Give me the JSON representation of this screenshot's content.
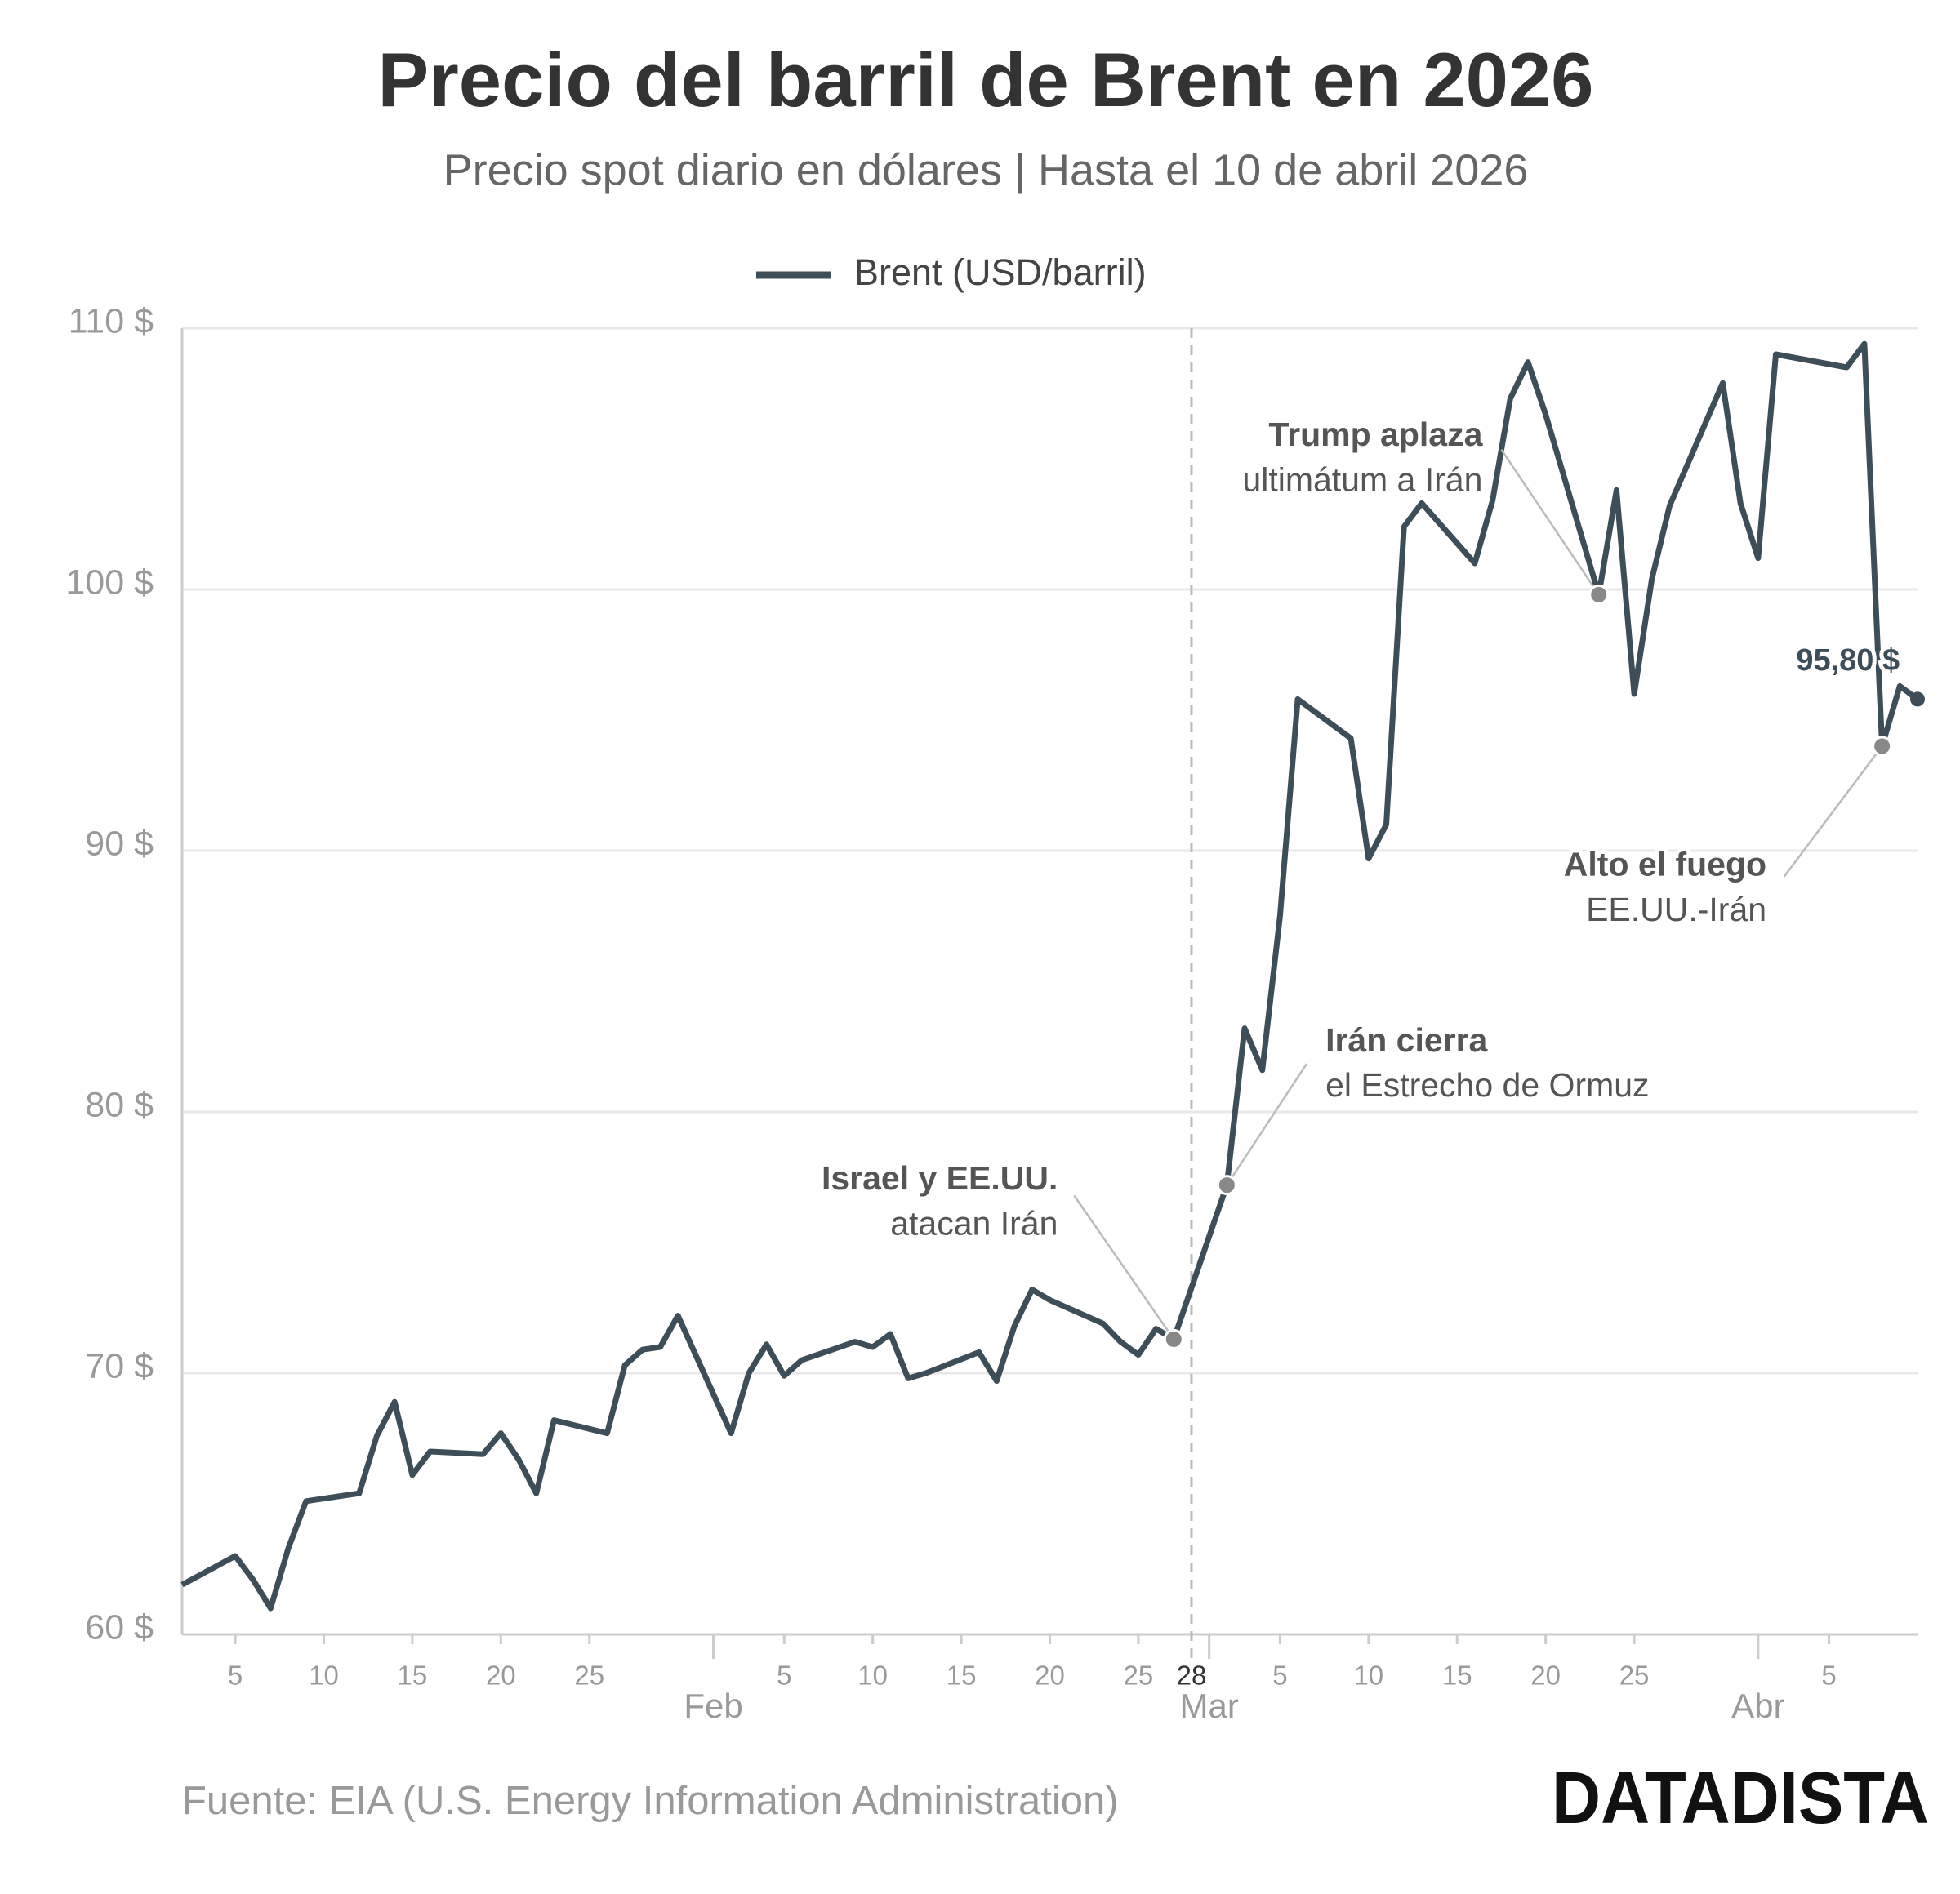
{
  "chart_data": {
    "type": "line",
    "title": "Precio del barril de Brent en 2026",
    "subtitle": "Precio spot diario en dólares | Hasta el 10 de abril 2026",
    "source": "Fuente: EIA (U.S. Energy Information Administration)",
    "brand": "DATADISTA",
    "x": [
      "2026-01-02",
      "2026-01-05",
      "2026-01-06",
      "2026-01-07",
      "2026-01-08",
      "2026-01-09",
      "2026-01-12",
      "2026-01-13",
      "2026-01-14",
      "2026-01-15",
      "2026-01-16",
      "2026-01-19",
      "2026-01-20",
      "2026-01-21",
      "2026-01-22",
      "2026-01-23",
      "2026-01-26",
      "2026-01-27",
      "2026-01-28",
      "2026-01-29",
      "2026-01-30",
      "2026-02-02",
      "2026-02-03",
      "2026-02-04",
      "2026-02-05",
      "2026-02-06",
      "2026-02-09",
      "2026-02-10",
      "2026-02-11",
      "2026-02-12",
      "2026-02-13",
      "2026-02-16",
      "2026-02-17",
      "2026-02-18",
      "2026-02-19",
      "2026-02-20",
      "2026-02-23",
      "2026-02-24",
      "2026-02-25",
      "2026-02-26",
      "2026-02-27",
      "2026-03-02",
      "2026-03-03",
      "2026-03-04",
      "2026-03-05",
      "2026-03-06",
      "2026-03-09",
      "2026-03-10",
      "2026-03-11",
      "2026-03-12",
      "2026-03-13",
      "2026-03-16",
      "2026-03-17",
      "2026-03-18",
      "2026-03-19",
      "2026-03-20",
      "2026-03-23",
      "2026-03-24",
      "2026-03-25",
      "2026-03-26",
      "2026-03-27",
      "2026-03-30",
      "2026-03-31",
      "2026-04-01",
      "2026-04-02",
      "2026-04-06",
      "2026-04-07",
      "2026-04-08",
      "2026-04-09",
      "2026-04-10"
    ],
    "series": [
      {
        "name": "Brent (USD/barril)",
        "color": "#3e4e58",
        "values": [
          61.9,
          63.0,
          62.1,
          61.0,
          63.3,
          65.1,
          65.4,
          67.6,
          68.9,
          66.1,
          67.0,
          66.9,
          67.7,
          66.7,
          65.4,
          68.2,
          67.7,
          70.3,
          70.9,
          71.0,
          72.2,
          67.7,
          70.0,
          71.1,
          69.9,
          70.5,
          71.2,
          71.0,
          71.5,
          69.8,
          70.0,
          70.8,
          69.7,
          71.8,
          73.2,
          72.8,
          71.9,
          71.2,
          70.7,
          71.7,
          71.3,
          77.2,
          83.2,
          81.6,
          87.5,
          95.8,
          94.3,
          89.7,
          91.0,
          102.4,
          103.3,
          101.0,
          103.4,
          107.3,
          108.7,
          106.7,
          99.8,
          103.8,
          96.0,
          100.4,
          103.2,
          107.9,
          103.3,
          101.2,
          109.0,
          108.5,
          109.4,
          94.0,
          96.3,
          95.8
        ]
      }
    ],
    "end_label": "95,80 $",
    "xlim": [
      "2026-01-02",
      "2026-04-10"
    ],
    "xticks": [
      {
        "value": "2026-01-05",
        "label": "5"
      },
      {
        "value": "2026-01-10",
        "label": "10"
      },
      {
        "value": "2026-01-15",
        "label": "15"
      },
      {
        "value": "2026-01-20",
        "label": "20"
      },
      {
        "value": "2026-01-25",
        "label": "25"
      },
      {
        "value": "2026-02-05",
        "label": "5"
      },
      {
        "value": "2026-02-10",
        "label": "10"
      },
      {
        "value": "2026-02-15",
        "label": "15"
      },
      {
        "value": "2026-02-20",
        "label": "20"
      },
      {
        "value": "2026-02-25",
        "label": "25"
      },
      {
        "value": "2026-03-05",
        "label": "5"
      },
      {
        "value": "2026-03-10",
        "label": "10"
      },
      {
        "value": "2026-03-15",
        "label": "15"
      },
      {
        "value": "2026-03-20",
        "label": "20"
      },
      {
        "value": "2026-03-25",
        "label": "25"
      },
      {
        "value": "2026-04-05",
        "label": "5"
      }
    ],
    "month_ticks": [
      {
        "value": "2026-02-01",
        "label": "Feb"
      },
      {
        "value": "2026-03-01",
        "label": "Mar"
      },
      {
        "value": "2026-04-01",
        "label": "Abr"
      }
    ],
    "event_line": {
      "x": "2026-02-28",
      "label": "28"
    },
    "ylim": [
      60,
      110
    ],
    "yticks": [
      {
        "value": 60,
        "label": "60 $"
      },
      {
        "value": 70,
        "label": "70 $"
      },
      {
        "value": 80,
        "label": "80 $"
      },
      {
        "value": 90,
        "label": "90 $"
      },
      {
        "value": 100,
        "label": "100 $"
      },
      {
        "value": 110,
        "label": "110 $"
      }
    ],
    "grid": true,
    "legend": "top",
    "annotations": [
      {
        "x": "2026-02-27",
        "title": "Israel y EE.UU.",
        "text": "atacan Irán"
      },
      {
        "x": "2026-03-02",
        "title": "Irán cierra",
        "text": "el Estrecho de Ormuz"
      },
      {
        "x": "2026-03-23",
        "title": "Trump aplaza",
        "text": "ultimátum a Irán"
      },
      {
        "x": "2026-04-08",
        "title": "Alto el fuego",
        "text": "EE.UU.-Irán"
      }
    ]
  }
}
